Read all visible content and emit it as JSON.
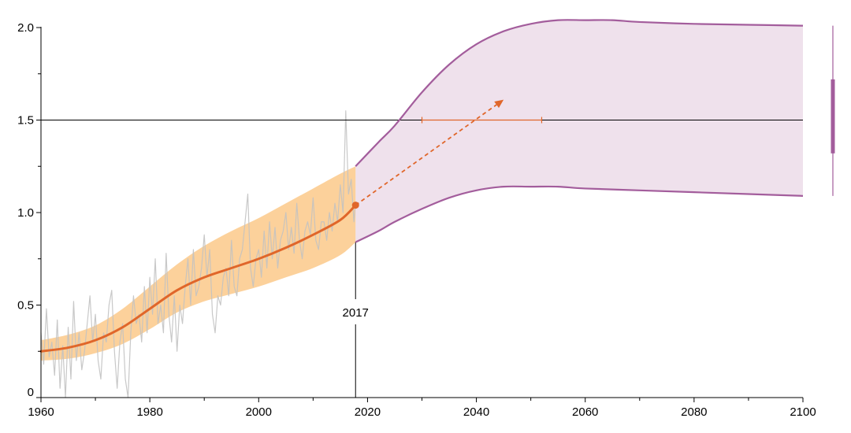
{
  "chart_data": {
    "type": "line",
    "xlim": [
      1960,
      2100
    ],
    "ylim": [
      0,
      2.0
    ],
    "x_ticks": [
      1960,
      1980,
      2000,
      2020,
      2040,
      2060,
      2080,
      2100
    ],
    "y_ticks": [
      0,
      0.5,
      1.0,
      1.5,
      2.0
    ],
    "y_tick_labels": [
      "0",
      "0.5",
      "1.0",
      "1.5",
      "2.0"
    ],
    "x_tick_labels": [
      "1960",
      "1980",
      "2000",
      "2020",
      "2040",
      "2060",
      "2080",
      "2100"
    ],
    "reference_line_y": 1.5,
    "annotation": {
      "label": "2017",
      "x": 2017.8,
      "y": 1.04
    },
    "colors": {
      "observed": "#c2c2c2",
      "trend": "#e0662a",
      "trend_band": "#fbc98a",
      "projection": "#a35d9c",
      "projection_fill": "#efe1ec",
      "reference": "#000000"
    },
    "series": [
      {
        "role": "observed-monthly",
        "x": [
          1960.0,
          1960.5,
          1961.0,
          1961.5,
          1962.0,
          1962.5,
          1963.0,
          1963.5,
          1964.0,
          1964.5,
          1965.0,
          1965.5,
          1966.0,
          1966.5,
          1967.0,
          1967.5,
          1968.0,
          1968.5,
          1969.0,
          1969.5,
          1970.0,
          1970.5,
          1971.0,
          1971.5,
          1972.0,
          1972.5,
          1973.0,
          1973.5,
          1974.0,
          1974.5,
          1975.0,
          1975.5,
          1976.0,
          1976.5,
          1977.0,
          1977.5,
          1978.0,
          1978.5,
          1979.0,
          1979.5,
          1980.0,
          1980.5,
          1981.0,
          1981.5,
          1982.0,
          1982.5,
          1983.0,
          1983.5,
          1984.0,
          1984.5,
          1985.0,
          1985.5,
          1986.0,
          1986.5,
          1987.0,
          1987.5,
          1988.0,
          1988.5,
          1989.0,
          1989.5,
          1990.0,
          1990.5,
          1991.0,
          1991.5,
          1992.0,
          1992.5,
          1993.0,
          1993.5,
          1994.0,
          1994.5,
          1995.0,
          1995.5,
          1996.0,
          1996.5,
          1997.0,
          1997.5,
          1998.0,
          1998.5,
          1999.0,
          1999.5,
          2000.0,
          2000.5,
          2001.0,
          2001.5,
          2002.0,
          2002.5,
          2003.0,
          2003.5,
          2004.0,
          2004.5,
          2005.0,
          2005.5,
          2006.0,
          2006.5,
          2007.0,
          2007.5,
          2008.0,
          2008.5,
          2009.0,
          2009.5,
          2010.0,
          2010.5,
          2011.0,
          2011.5,
          2012.0,
          2012.5,
          2013.0,
          2013.5,
          2014.0,
          2014.5,
          2015.0,
          2015.5,
          2016.0,
          2016.5,
          2017.0,
          2017.5,
          2017.8
        ],
        "y": [
          0.35,
          0.18,
          0.48,
          0.22,
          0.3,
          0.12,
          0.42,
          0.05,
          0.28,
          0.0,
          0.38,
          0.1,
          0.52,
          0.2,
          0.35,
          0.15,
          0.25,
          0.4,
          0.55,
          0.3,
          0.45,
          0.2,
          0.1,
          0.35,
          0.3,
          0.5,
          0.58,
          0.25,
          0.05,
          0.3,
          0.4,
          0.1,
          0.0,
          0.35,
          0.55,
          0.4,
          0.45,
          0.3,
          0.6,
          0.35,
          0.65,
          0.45,
          0.75,
          0.4,
          0.5,
          0.35,
          0.78,
          0.45,
          0.3,
          0.55,
          0.25,
          0.5,
          0.4,
          0.6,
          0.75,
          0.5,
          0.8,
          0.55,
          0.6,
          0.7,
          0.88,
          0.65,
          0.8,
          0.45,
          0.35,
          0.55,
          0.5,
          0.65,
          0.7,
          0.55,
          0.85,
          0.6,
          0.55,
          0.75,
          0.8,
          0.95,
          1.1,
          0.7,
          0.6,
          0.75,
          0.8,
          0.65,
          0.9,
          0.7,
          0.95,
          0.75,
          0.92,
          0.7,
          0.85,
          0.9,
          1.0,
          0.8,
          0.92,
          0.78,
          1.05,
          0.85,
          0.75,
          0.9,
          0.95,
          0.88,
          1.08,
          0.85,
          0.8,
          0.95,
          0.95,
          0.85,
          1.0,
          0.9,
          1.05,
          0.95,
          1.15,
          1.0,
          1.55,
          1.1,
          1.18,
          0.95,
          1.05
        ]
      },
      {
        "role": "trend",
        "x": [
          1960,
          1965,
          1970,
          1975,
          1980,
          1985,
          1990,
          1995,
          2000,
          2005,
          2010,
          2015,
          2017.8
        ],
        "y": [
          0.25,
          0.27,
          0.31,
          0.38,
          0.48,
          0.58,
          0.65,
          0.7,
          0.75,
          0.81,
          0.88,
          0.96,
          1.04
        ]
      },
      {
        "role": "trend-band-upper",
        "x": [
          1960,
          1965,
          1970,
          1975,
          1980,
          1985,
          1990,
          1995,
          2000,
          2005,
          2010,
          2015,
          2017.8
        ],
        "y": [
          0.31,
          0.34,
          0.39,
          0.48,
          0.6,
          0.72,
          0.82,
          0.9,
          0.97,
          1.05,
          1.13,
          1.21,
          1.25
        ]
      },
      {
        "role": "trend-band-lower",
        "x": [
          1960,
          1965,
          1970,
          1975,
          1980,
          1985,
          1990,
          1995,
          2000,
          2005,
          2010,
          2015,
          2017.8
        ],
        "y": [
          0.2,
          0.21,
          0.24,
          0.29,
          0.37,
          0.46,
          0.52,
          0.56,
          0.6,
          0.65,
          0.7,
          0.77,
          0.84
        ]
      },
      {
        "role": "projection-upper",
        "x": [
          2017.8,
          2022,
          2025,
          2030,
          2035,
          2040,
          2045,
          2050,
          2055,
          2060,
          2065,
          2070,
          2080,
          2090,
          2100
        ],
        "y": [
          1.25,
          1.38,
          1.47,
          1.65,
          1.8,
          1.91,
          1.98,
          2.02,
          2.04,
          2.04,
          2.04,
          2.03,
          2.02,
          2.015,
          2.01
        ]
      },
      {
        "role": "projection-lower",
        "x": [
          2017.8,
          2022,
          2025,
          2030,
          2035,
          2040,
          2045,
          2050,
          2055,
          2060,
          2070,
          2080,
          2090,
          2100
        ],
        "y": [
          0.84,
          0.9,
          0.95,
          1.02,
          1.08,
          1.12,
          1.14,
          1.14,
          1.14,
          1.13,
          1.12,
          1.11,
          1.1,
          1.09
        ]
      }
    ],
    "arrow": {
      "x": [
        2017.8,
        2045.0
      ],
      "y": [
        1.04,
        1.61
      ]
    },
    "range_bar": {
      "x": [
        2030,
        2052
      ],
      "y": 1.5
    },
    "side_marker": {
      "x": 2105.5,
      "whisker": [
        1.09,
        2.01
      ],
      "box": [
        1.32,
        1.72
      ]
    }
  }
}
